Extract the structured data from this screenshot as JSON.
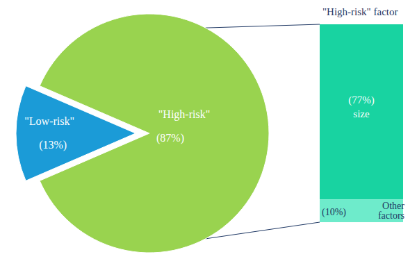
{
  "chart_data": {
    "type": "pie",
    "categories": [
      "\"Low-risk\"",
      "\"High-risk\""
    ],
    "values": [
      13,
      87
    ],
    "value_labels": [
      "(13%)",
      "(87%)"
    ],
    "colors": [
      "#1b9bd7",
      "#99d34f"
    ],
    "data_labels": true,
    "breakdown": {
      "title": "\"High-risk\" factor",
      "categories": [
        "size",
        "Other factors"
      ],
      "values": [
        77,
        10
      ],
      "value_labels": [
        "(77%)",
        "(10%)"
      ],
      "colors": [
        "#18d3a1",
        "#6eebcb"
      ]
    }
  }
}
